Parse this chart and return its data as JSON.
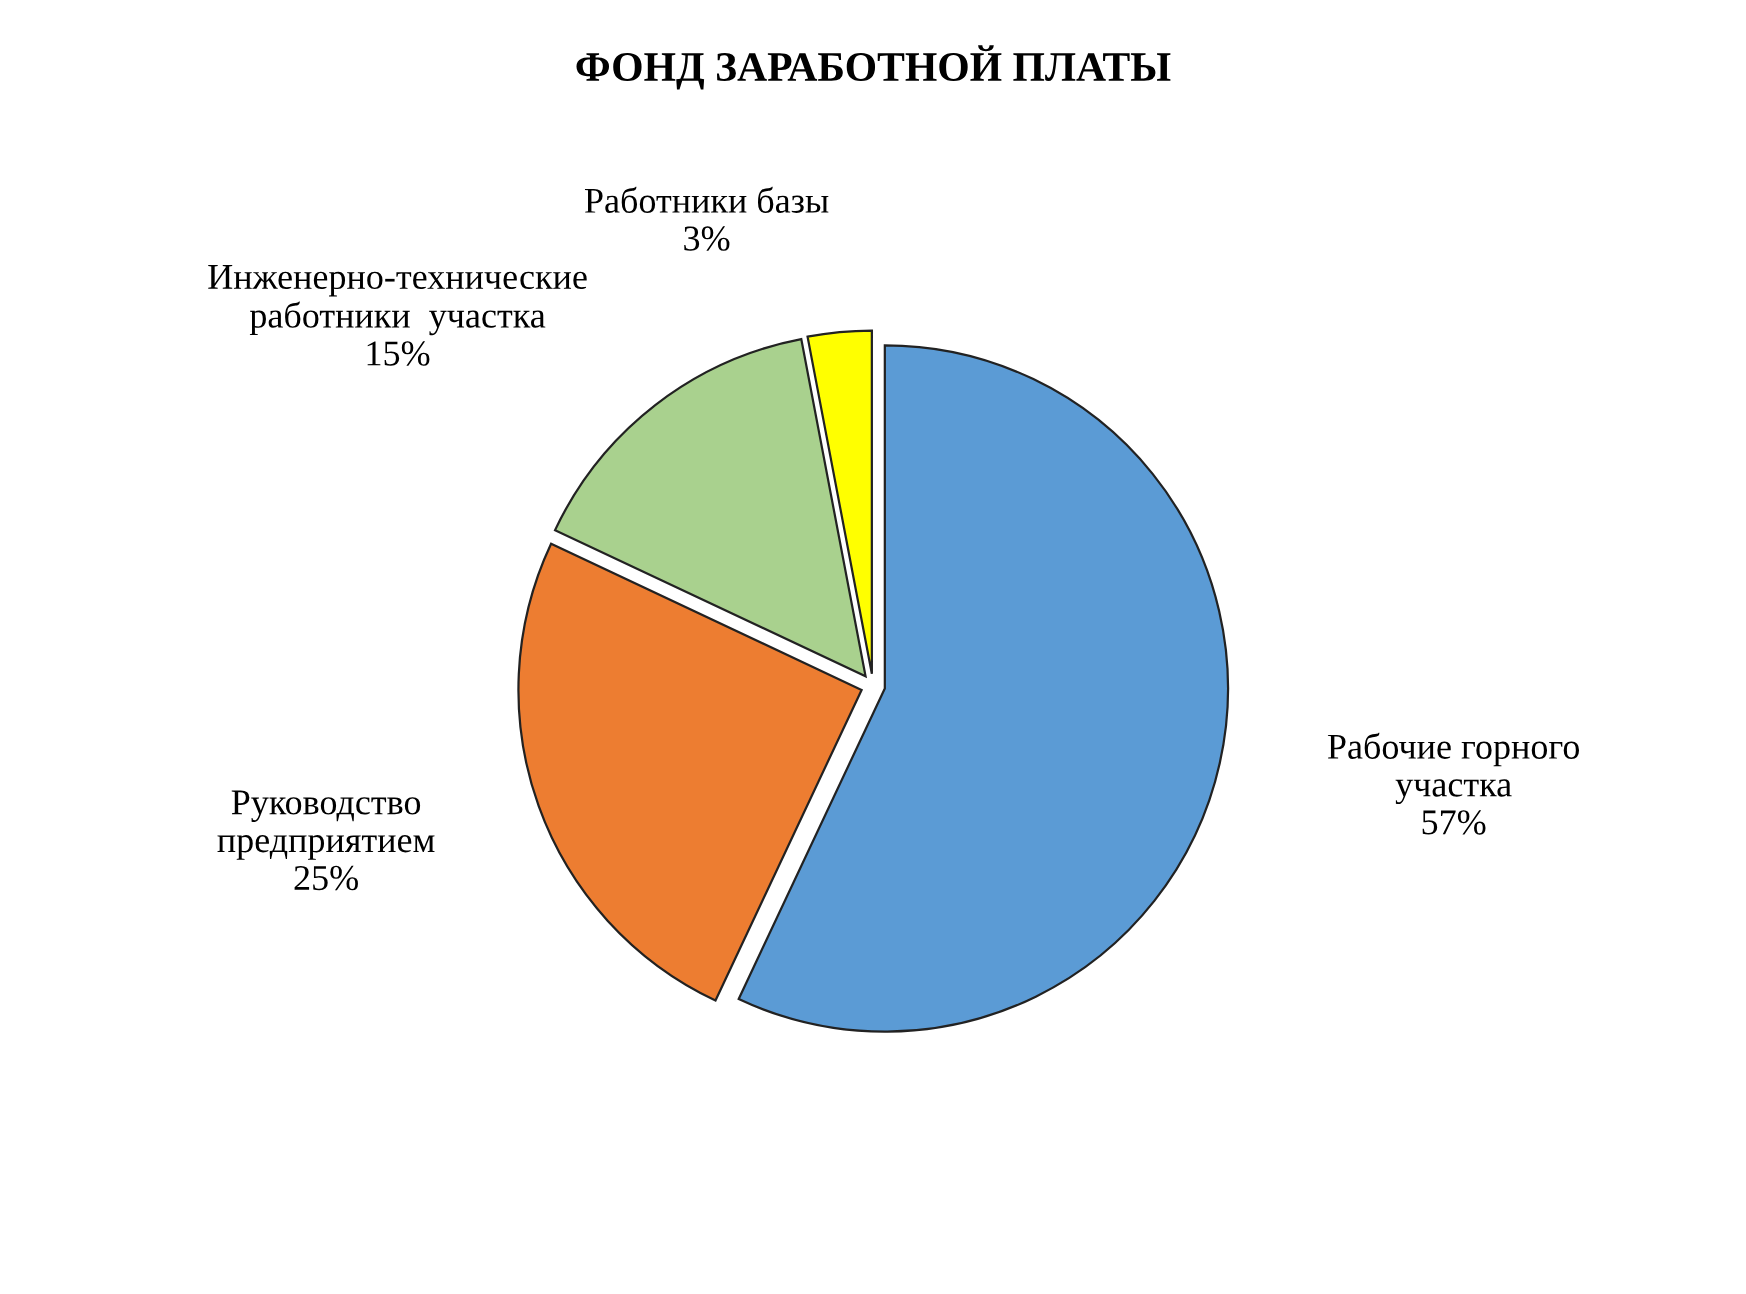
{
  "chart_data": {
    "type": "pie",
    "title": "ФОНД ЗАРАБОТНОЙ ПЛАТЫ",
    "categories": [
      "Рабочие горного\nучастка",
      "Руководство\nпредприятием",
      "Инженерно-технические\nработники  участка",
      "Работники базы"
    ],
    "values": [
      57,
      25,
      15,
      3
    ],
    "value_labels": [
      "57%",
      "25%",
      "15%",
      "3%"
    ],
    "colors": [
      "#5b9bd5",
      "#ed7d31",
      "#a9d18e",
      "#ffff00"
    ],
    "legend": false
  }
}
